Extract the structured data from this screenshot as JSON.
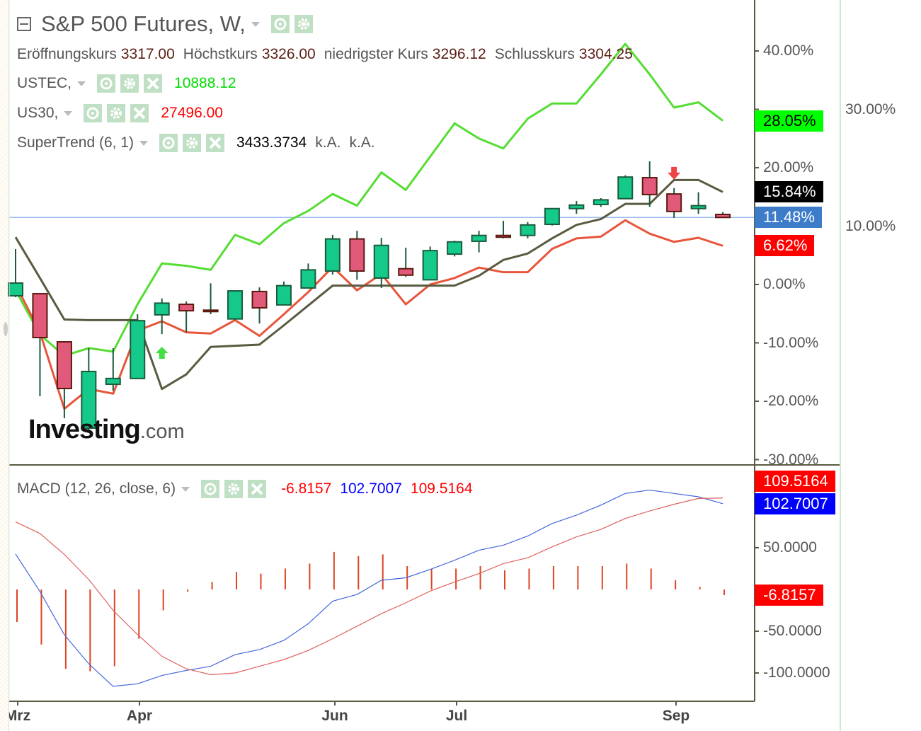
{
  "header": {
    "title": "S&P 500 Futures, W,",
    "ohlc": [
      {
        "label": "Eröffnungskurs",
        "value": "3317.00"
      },
      {
        "label": "Höchstkurs",
        "value": "3326.00"
      },
      {
        "label": "niedrigster Kurs",
        "value": "3296.12"
      },
      {
        "label": "Schlusskurs",
        "value": "3304.25"
      }
    ]
  },
  "overlays": [
    {
      "name": "USTEC,",
      "value": "10888.12",
      "color": "#00dd00"
    },
    {
      "name": "US30,",
      "value": "27496.00",
      "color": "#ff0000"
    },
    {
      "name": "SuperTrend (6, 1)",
      "value": "3433.3734",
      "extra1": "k.A.",
      "extra2": "k.A.",
      "color": "#000000"
    }
  ],
  "macd_legend": {
    "name": "MACD (12, 26, close, 6)",
    "hist": "-6.8157",
    "macd": "102.7007",
    "signal": "109.5164"
  },
  "logo": {
    "main": "Investing",
    "suffix": ".com"
  },
  "price_tags": [
    {
      "text": "28.05%",
      "bg": "#00ff00",
      "fg": "#000000",
      "value": 28.05
    },
    {
      "text": "15.84%",
      "bg": "#000000",
      "fg": "#ffffff",
      "value": 15.84
    },
    {
      "text": "11.48%",
      "bg": "#3d7cc9",
      "fg": "#ffffff",
      "value": 11.48
    },
    {
      "text": "6.62%",
      "bg": "#ff0000",
      "fg": "#ffffff",
      "value": 6.62
    }
  ],
  "macd_tags": [
    {
      "text": "109.5164",
      "bg": "#ff0000",
      "fg": "#ffffff",
      "value": 109.5164
    },
    {
      "text": "102.7007",
      "bg": "#0000ff",
      "fg": "#ffffff",
      "value": 102.7007
    },
    {
      "text": "-6.8157",
      "bg": "#ff0000",
      "fg": "#ffffff",
      "value": -6.8157
    }
  ],
  "chart_data": [
    {
      "type": "candlestick",
      "title": "S&P 500 Futures, W,",
      "y_axis": {
        "unit": "%",
        "ylim": [
          -30,
          40
        ],
        "ticks": [
          "40.00%",
          "30.00%",
          "20.00%",
          "10.00%",
          "0.00%",
          "-10.00%",
          "-20.00%",
          "-30.00%"
        ],
        "tick_values": [
          40,
          30,
          20,
          10,
          0,
          -10,
          -20,
          -30
        ],
        "position": "right"
      },
      "x_axis": {
        "ticks": [
          "Mrz",
          "Apr",
          "Jun",
          "Jul",
          "Sep"
        ]
      },
      "grid": false,
      "candles": {
        "open": [
          -1.94,
          -1.58,
          -9.82,
          -24.6,
          -17.1,
          -16.1,
          -5.2,
          -3.4,
          -4.4,
          -5.9,
          -1.2,
          -3.5,
          -0.6,
          2.3,
          7.8,
          1.1,
          2.7,
          0.8,
          5.2,
          7.4,
          8.4,
          8.4,
          10.3,
          13.0,
          13.7,
          14.7,
          18.3,
          15.5,
          13.0,
          12.0
        ],
        "high": [
          6.06,
          -1.58,
          -9.82,
          -10.9,
          -10.9,
          -5.1,
          -2.4,
          -2.9,
          0.2,
          -1.1,
          -0.5,
          0.5,
          3.6,
          8.5,
          9.2,
          8.0,
          6.3,
          6.5,
          7.5,
          9.2,
          10.9,
          10.7,
          13.0,
          14.3,
          14.8,
          18.7,
          21.1,
          16.5,
          15.8,
          12.4
        ],
        "low": [
          -2.18,
          -19.15,
          -22.91,
          -25.2,
          -18.2,
          -16.1,
          -8.5,
          -8.2,
          -5.1,
          -6.1,
          -6.7,
          -3.5,
          -0.6,
          1.7,
          0.8,
          -0.6,
          1.3,
          0.8,
          4.8,
          5.5,
          7.9,
          7.9,
          10.1,
          12.1,
          13.3,
          14.7,
          13.3,
          11.4,
          12.1,
          11.48
        ],
        "close": [
          0.24,
          -9.09,
          -17.82,
          -14.9,
          -16.1,
          -6.2,
          -3.2,
          -4.5,
          -4.6,
          -1.1,
          -4.0,
          -0.2,
          2.5,
          7.8,
          2.3,
          6.7,
          1.6,
          5.8,
          7.3,
          8.4,
          8.1,
          10.2,
          13.0,
          13.6,
          14.5,
          18.4,
          15.4,
          12.5,
          13.5,
          11.48
        ]
      },
      "series": [
        {
          "name": "USTEC",
          "color": "#55dd33",
          "values": [
            -1.0,
            -8.6,
            -12.2,
            -10.9,
            -11.5,
            -3.4,
            3.6,
            3.2,
            2.5,
            8.5,
            6.9,
            10.5,
            12.6,
            15.5,
            13.5,
            19.2,
            16.2,
            21.9,
            27.6,
            25.0,
            23.3,
            28.4,
            31.0,
            31.0,
            36.0,
            41.2,
            36.0,
            30.3,
            31.2,
            28.05
          ]
        },
        {
          "name": "US30",
          "color": "#e8553a",
          "values": [
            0,
            -8.2,
            -21.3,
            -17.9,
            -18.7,
            -7.9,
            -6.3,
            -8.2,
            -8.4,
            -6.1,
            -8.8,
            -5.1,
            -1.3,
            3.0,
            -1.0,
            1.8,
            -3.4,
            0,
            1.1,
            2.9,
            2.1,
            2.1,
            6.1,
            7.9,
            8.2,
            11.0,
            8.7,
            7.3,
            8.0,
            6.62
          ]
        },
        {
          "name": "SuperTrend (6, 1)",
          "color": "#5a5a40",
          "values": [
            8.1,
            1.1,
            -6.0,
            -6.1,
            -6.1,
            -6.1,
            -17.9,
            -15.4,
            -10.7,
            -10.5,
            -10.3,
            -7.0,
            -3.6,
            -0.2,
            -0.2,
            -0.2,
            -0.2,
            -0.2,
            -0.2,
            1.5,
            4.2,
            5.3,
            7.9,
            10.2,
            11.2,
            13.8,
            13.8,
            17.9,
            17.9,
            15.84
          ]
        }
      ],
      "price_line": 11.48,
      "signals": [
        {
          "type": "buy",
          "bar": 6,
          "color": "#44dd44"
        },
        {
          "type": "sell",
          "bar": 27,
          "color": "#ee4444"
        }
      ]
    },
    {
      "type": "line+bar",
      "title": "MACD (12, 26, close, 6)",
      "y_axis": {
        "ticks": [
          "50.0000",
          "-50.0000",
          "-100.0000"
        ],
        "tick_values": [
          50,
          -50,
          -100
        ],
        "position": "right"
      },
      "grid": false,
      "series": [
        {
          "name": "MACD",
          "color": "#4466dd",
          "values": [
            42.4,
            -2.5,
            -54.2,
            -89,
            -116,
            -113,
            -103,
            -97,
            -92,
            -78,
            -72,
            -61,
            -41,
            -14,
            -6,
            11,
            14,
            24,
            35,
            47,
            53,
            64,
            79,
            89,
            101,
            115,
            119,
            115,
            111,
            102.7007
          ]
        },
        {
          "name": "Signal",
          "color": "#e06060",
          "values": [
            81,
            67,
            42,
            12,
            -25,
            -54,
            -80,
            -95,
            -102,
            -100,
            -92,
            -84,
            -73,
            -59,
            -44,
            -29,
            -16,
            -2,
            9,
            19,
            31,
            38,
            51,
            63,
            72,
            85,
            94,
            102,
            109,
            109.5164
          ]
        },
        {
          "name": "Histogram",
          "color": "#dd4422",
          "values": [
            -39,
            -66,
            -95,
            -98,
            -92,
            -59,
            -25,
            -1,
            9,
            21,
            19,
            25,
            31,
            45,
            40,
            42,
            28,
            25,
            25,
            28,
            23,
            25,
            28,
            28,
            28,
            31,
            25,
            11,
            3,
            -6.8157
          ]
        }
      ]
    }
  ]
}
